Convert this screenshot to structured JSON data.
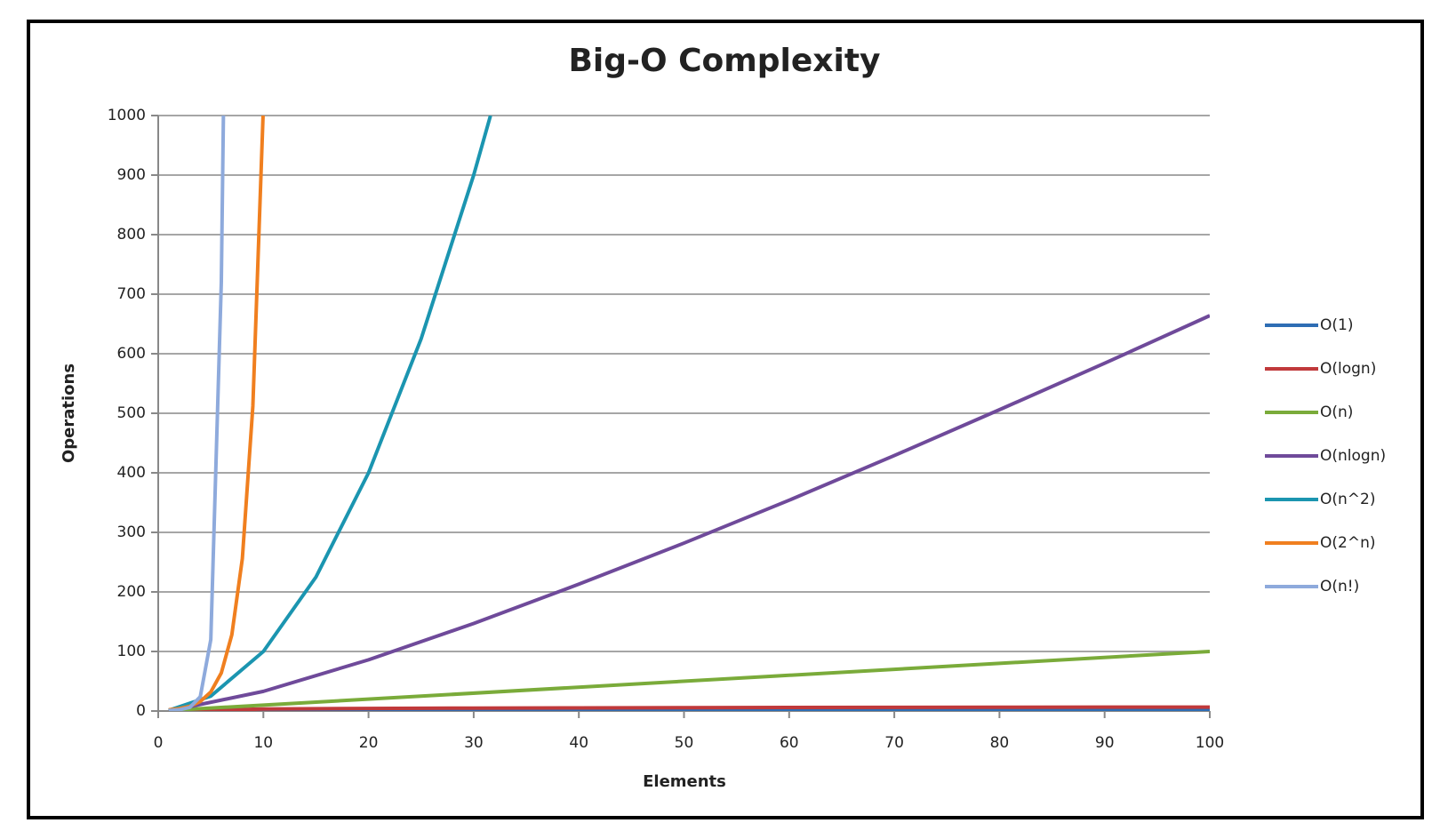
{
  "chart_data": {
    "type": "line",
    "title": "Big-O Complexity",
    "x_label": "Elements",
    "y_label": "Operations",
    "xlim": [
      0,
      100
    ],
    "xticks": [
      0,
      10,
      20,
      30,
      40,
      50,
      60,
      70,
      80,
      90,
      100
    ],
    "ylim": [
      0,
      1000
    ],
    "yticks": [
      0,
      100,
      200,
      300,
      400,
      500,
      600,
      700,
      800,
      900,
      1000
    ],
    "grid": true,
    "legend": "right",
    "series": [
      {
        "name": "O(1)",
        "color": "#2e6db4",
        "x": [
          1,
          100
        ],
        "values": [
          1,
          1
        ]
      },
      {
        "name": "O(logn)",
        "color": "#c0393b",
        "x": [
          1,
          10,
          20,
          30,
          40,
          50,
          60,
          70,
          80,
          90,
          100
        ],
        "values": [
          0,
          3.3,
          4.3,
          4.9,
          5.3,
          5.6,
          5.9,
          6.1,
          6.3,
          6.5,
          6.6
        ]
      },
      {
        "name": "O(n)",
        "color": "#7aab3a",
        "x": [
          1,
          100
        ],
        "values": [
          1,
          100
        ]
      },
      {
        "name": "O(nlogn)",
        "color": "#6f4a9a",
        "x": [
          1,
          10,
          20,
          30,
          40,
          50,
          60,
          70,
          80,
          90,
          100
        ],
        "values": [
          0,
          33,
          86,
          147,
          213,
          282,
          354,
          429,
          506,
          584,
          664
        ]
      },
      {
        "name": "O(n^2)",
        "color": "#1b95b0",
        "x": [
          1,
          5,
          10,
          15,
          20,
          25,
          30,
          31.6
        ],
        "values": [
          1,
          25,
          100,
          225,
          400,
          625,
          900,
          1000
        ]
      },
      {
        "name": "O(2^n)",
        "color": "#f07f1f",
        "x": [
          1,
          2,
          3,
          4,
          5,
          6,
          7,
          8,
          9,
          9.97
        ],
        "values": [
          2,
          4,
          8,
          16,
          32,
          64,
          128,
          256,
          512,
          1000
        ]
      },
      {
        "name": "O(n!)",
        "color": "#8eaadc",
        "x": [
          1,
          2,
          3,
          4,
          5,
          6,
          6.2
        ],
        "values": [
          1,
          2,
          6,
          24,
          120,
          720,
          1000
        ]
      }
    ]
  }
}
